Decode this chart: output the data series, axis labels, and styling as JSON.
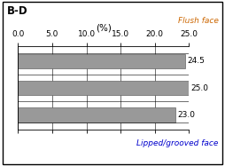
{
  "title": "B-D",
  "xlabel": "(%)",
  "top_label": "Flush face",
  "bottom_label": "Lipped/grooved face",
  "bar_values": [
    24.5,
    25.0,
    23.0
  ],
  "bar_color": "#999999",
  "xlim": [
    0.0,
    25.0
  ],
  "xticks": [
    0.0,
    5.0,
    10.0,
    15.0,
    20.0,
    25.0
  ],
  "bar_height": 0.55,
  "value_fontsize": 6.5,
  "label_fontsize": 6.5,
  "title_fontsize": 8.5,
  "xlabel_fontsize": 7.5,
  "background_color": "#ffffff",
  "bar_color_edge": "#666666"
}
